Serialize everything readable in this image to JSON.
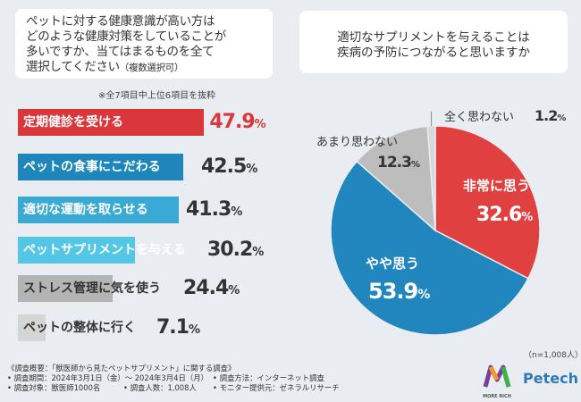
{
  "left_question": {
    "line1": "ペットに対する健康意識が高い方は",
    "line2": "どのような健康対策をしていることが",
    "line3": "多いですか、当てはまるものを全て",
    "line4": "選択してください",
    "sub": "（複数選択可）"
  },
  "right_question": {
    "line1": "適切なサプリメントを与えることは",
    "line2": "疾病の予防につながると思いますか"
  },
  "note": "※全7項目中上位6項目を抜粋",
  "unit": "%",
  "sample_note": "（n=1,008人）",
  "chart_data": [
    {
      "type": "bar",
      "orientation": "horizontal",
      "title": "ペットに対する健康意識が高い方はどのような健康対策をしていることが多いですか",
      "categories": [
        "定期健診を受ける",
        "ペットの食事にこだわる",
        "適切な運動を取らせる",
        "ペットサプリメントを与える",
        "ストレス管理に気を使う",
        "ペットの整体に行く"
      ],
      "values": [
        47.9,
        42.5,
        41.3,
        30.2,
        24.4,
        7.1
      ],
      "value_labels": [
        "47.9",
        "42.5",
        "41.3",
        "30.2",
        "24.4",
        "7.1"
      ],
      "colors": [
        "#d9373b",
        "#1e86bb",
        "#3aa9d3",
        "#55c7e6",
        "#b4b4b4",
        "#d5d5d5"
      ],
      "label_colors": [
        "#ffffff",
        "#ffffff",
        "#ffffff",
        "#ffffff",
        "#333333",
        "#333333"
      ],
      "value_colors": [
        "#d9373b",
        "#333333",
        "#333333",
        "#333333",
        "#333333",
        "#333333"
      ],
      "unit": "%"
    },
    {
      "type": "pie",
      "title": "適切なサプリメントを与えることは疾病の予防につながると思いますか",
      "categories": [
        "非常に思う",
        "やや思う",
        "あまり思わない",
        "全く思わない"
      ],
      "values": [
        32.6,
        53.9,
        12.3,
        1.2
      ],
      "value_labels": [
        "32.6",
        "53.9",
        "12.3",
        "1.2"
      ],
      "colors": [
        "#e0403f",
        "#2286be",
        "#bdbdbd",
        "#d8d8d8"
      ],
      "unit": "%"
    }
  ],
  "footer": {
    "line1": "《調査概要：「獣医師から見たペットサプリメント」に関する調査》",
    "period": "• 調査期間：2024年3月1日（金）〜 2024年3月4日（月）",
    "method": "• 調査方法：インターネット調査",
    "target": "• 調査対象：獣医師1000名",
    "count": "• 調査人数：1,008人",
    "provider": "• モニター提供元：ゼネラルリサーチ"
  },
  "brand": {
    "logo1": "MORE RICH",
    "logo2": "Petech"
  }
}
